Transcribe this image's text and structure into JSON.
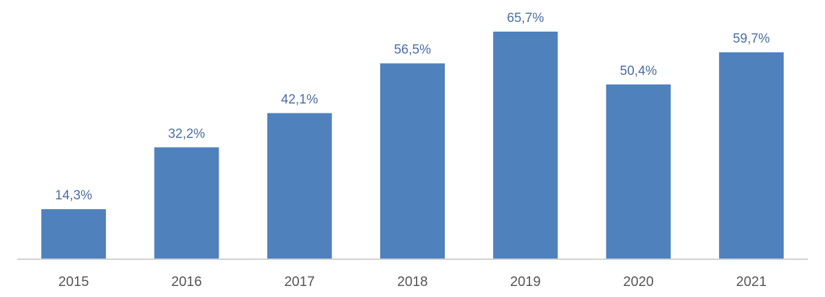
{
  "chart_data": {
    "type": "bar",
    "title": "",
    "xlabel": "",
    "ylabel": "",
    "categories": [
      "2015",
      "2016",
      "2017",
      "2018",
      "2019",
      "2020",
      "2021"
    ],
    "values": [
      14.3,
      32.2,
      42.1,
      56.5,
      65.7,
      50.4,
      59.7
    ],
    "value_labels": [
      "14,3%",
      "32,2%",
      "42,1%",
      "56,5%",
      "65,7%",
      "50,4%",
      "59,7%"
    ],
    "ylim": [
      0,
      65.7
    ],
    "grid": false,
    "legend": "none",
    "colors": {
      "bar": "#4f81bd",
      "data_label": "#4a6da0",
      "tick_label": "#555555",
      "axis": "#d0d0d0"
    }
  }
}
